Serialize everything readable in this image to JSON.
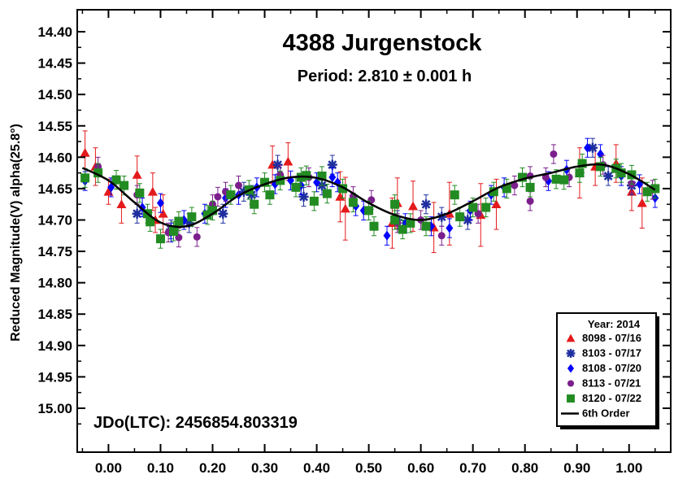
{
  "chart_data": {
    "type": "scatter",
    "title": "4388 Jurgenstock",
    "subtitle": "Period: 2.810 ± 0.001 h",
    "ylabel": "Reduced Magnitude(V) alpha(25.8°)",
    "xlabel": "",
    "annotation": "JDo(LTC): 2456854.803319",
    "xlim": [
      -0.06,
      1.08
    ],
    "ylim": [
      15.07,
      14.365
    ],
    "y_inverted": true,
    "grid": false,
    "x_ticks": [
      0.0,
      0.1,
      0.2,
      0.3,
      0.4,
      0.5,
      0.6,
      0.7,
      0.8,
      0.9,
      1.0
    ],
    "x_tick_labels": [
      "0.00",
      "0.10",
      "0.20",
      "0.30",
      "0.40",
      "0.50",
      "0.60",
      "0.70",
      "0.80",
      "0.90",
      "1.00"
    ],
    "y_ticks": [
      14.4,
      14.45,
      14.5,
      14.55,
      14.6,
      14.65,
      14.7,
      14.75,
      14.8,
      14.85,
      14.9,
      14.95,
      15.0
    ],
    "y_tick_labels": [
      "14.40",
      "14.45",
      "14.50",
      "14.55",
      "14.60",
      "14.65",
      "14.70",
      "14.75",
      "14.80",
      "14.85",
      "14.90",
      "14.95",
      "15.00"
    ],
    "legend": {
      "title": "Year: 2014",
      "placement": "bottom-right",
      "entries": [
        "8098 - 07/16",
        "8103 - 07/17",
        "8108 - 07/20",
        "8113 - 07/21",
        "8120 - 07/22",
        "6th Order"
      ]
    },
    "series": [
      {
        "name": "8098 - 07/16",
        "marker": "triangle",
        "color": "#e41a1c",
        "points": [
          [
            -0.045,
            14.593,
            0.035
          ],
          [
            -0.025,
            14.615,
            0.03
          ],
          [
            0.0,
            14.655,
            0.02
          ],
          [
            0.025,
            14.675,
            0.03
          ],
          [
            0.055,
            14.628,
            0.03
          ],
          [
            0.085,
            14.655,
            0.03
          ],
          [
            0.09,
            14.7,
            0.02
          ],
          [
            0.315,
            14.612,
            0.03
          ],
          [
            0.345,
            14.607,
            0.03
          ],
          [
            0.445,
            14.663,
            0.04
          ],
          [
            0.455,
            14.682,
            0.05
          ],
          [
            0.555,
            14.673,
            0.04
          ],
          [
            0.585,
            14.678,
            0.04
          ],
          [
            0.625,
            14.712,
            0.04
          ],
          [
            0.655,
            14.69,
            0.05
          ],
          [
            0.715,
            14.692,
            0.05
          ],
          [
            0.745,
            14.675,
            0.04
          ],
          [
            0.905,
            14.625,
            0.04
          ],
          [
            0.935,
            14.615,
            0.03
          ],
          [
            0.975,
            14.61,
            0.03
          ],
          [
            1.005,
            14.655,
            0.03
          ],
          [
            1.025,
            14.673,
            0.04
          ],
          [
            0.105,
            14.69,
            0.03
          ],
          [
            0.545,
            14.705,
            0.04
          ]
        ]
      },
      {
        "name": "8103 - 07/17",
        "marker": "asterisk",
        "color": "#1f2f9f",
        "points": [
          [
            0.055,
            14.69,
            0.015
          ],
          [
            0.12,
            14.715,
            0.015
          ],
          [
            0.155,
            14.705,
            0.015
          ],
          [
            0.2,
            14.685,
            0.015
          ],
          [
            0.22,
            14.69,
            0.015
          ],
          [
            0.26,
            14.655,
            0.015
          ],
          [
            0.275,
            14.66,
            0.015
          ],
          [
            0.325,
            14.612,
            0.015
          ],
          [
            0.375,
            14.663,
            0.015
          ],
          [
            0.41,
            14.645,
            0.015
          ],
          [
            0.43,
            14.612,
            0.015
          ],
          [
            0.555,
            14.7,
            0.015
          ],
          [
            0.61,
            14.675,
            0.015
          ],
          [
            0.64,
            14.695,
            0.015
          ],
          [
            0.69,
            14.7,
            0.015
          ],
          [
            0.93,
            14.585,
            0.015
          ],
          [
            0.96,
            14.63,
            0.015
          ],
          [
            1.005,
            14.645,
            0.015
          ]
        ]
      },
      {
        "name": "8108 - 07/20",
        "marker": "diamond",
        "color": "#0000ff",
        "points": [
          [
            -0.045,
            14.638,
            0.015
          ],
          [
            0.1,
            14.673,
            0.015
          ],
          [
            0.12,
            14.72,
            0.015
          ],
          [
            0.145,
            14.7,
            0.015
          ],
          [
            0.185,
            14.69,
            0.015
          ],
          [
            0.225,
            14.665,
            0.015
          ],
          [
            0.25,
            14.66,
            0.015
          ],
          [
            0.285,
            14.648,
            0.015
          ],
          [
            0.32,
            14.643,
            0.015
          ],
          [
            0.35,
            14.637,
            0.015
          ],
          [
            0.37,
            14.645,
            0.015
          ],
          [
            0.4,
            14.64,
            0.015
          ],
          [
            0.43,
            14.632,
            0.015
          ],
          [
            0.44,
            14.64,
            0.015
          ],
          [
            0.475,
            14.678,
            0.015
          ],
          [
            0.49,
            14.685,
            0.015
          ],
          [
            0.535,
            14.725,
            0.015
          ],
          [
            0.57,
            14.705,
            0.015
          ],
          [
            0.62,
            14.71,
            0.015
          ],
          [
            0.655,
            14.713,
            0.015
          ],
          [
            0.695,
            14.685,
            0.015
          ],
          [
            0.735,
            14.66,
            0.015
          ],
          [
            0.76,
            14.648,
            0.015
          ],
          [
            0.845,
            14.638,
            0.015
          ],
          [
            0.88,
            14.62,
            0.015
          ],
          [
            0.92,
            14.585,
            0.015
          ],
          [
            0.945,
            14.595,
            0.015
          ],
          [
            0.985,
            14.63,
            0.015
          ],
          [
            1.02,
            14.643,
            0.015
          ],
          [
            1.05,
            14.665,
            0.015
          ],
          [
            0.005,
            14.648,
            0.015
          ],
          [
            0.065,
            14.68,
            0.015
          ]
        ]
      },
      {
        "name": "8113 - 07/21",
        "marker": "circle",
        "color": "#7b1f8c",
        "points": [
          [
            -0.02,
            14.615,
            0.015
          ],
          [
            0.055,
            14.66,
            0.015
          ],
          [
            0.115,
            14.72,
            0.015
          ],
          [
            0.135,
            14.728,
            0.015
          ],
          [
            0.17,
            14.727,
            0.015
          ],
          [
            0.2,
            14.675,
            0.015
          ],
          [
            0.21,
            14.663,
            0.015
          ],
          [
            0.225,
            14.655,
            0.015
          ],
          [
            0.25,
            14.645,
            0.015
          ],
          [
            0.33,
            14.628,
            0.015
          ],
          [
            0.385,
            14.632,
            0.015
          ],
          [
            0.47,
            14.662,
            0.015
          ],
          [
            0.505,
            14.668,
            0.015
          ],
          [
            0.555,
            14.705,
            0.015
          ],
          [
            0.6,
            14.7,
            0.015
          ],
          [
            0.64,
            14.725,
            0.015
          ],
          [
            0.71,
            14.69,
            0.015
          ],
          [
            0.78,
            14.645,
            0.015
          ],
          [
            0.81,
            14.63,
            0.015
          ],
          [
            0.84,
            14.632,
            0.015
          ],
          [
            0.855,
            14.595,
            0.015
          ],
          [
            0.885,
            14.632,
            0.015
          ],
          [
            0.95,
            14.612,
            0.015
          ],
          [
            1.005,
            14.642,
            0.015
          ],
          [
            1.045,
            14.652,
            0.015
          ],
          [
            0.81,
            14.67,
            0.015
          ]
        ]
      },
      {
        "name": "8120 - 07/22",
        "marker": "square",
        "color": "#228b22",
        "points": [
          [
            -0.045,
            14.633,
            0.015
          ],
          [
            -0.02,
            14.625,
            0.015
          ],
          [
            0.015,
            14.636,
            0.015
          ],
          [
            0.03,
            14.645,
            0.015
          ],
          [
            0.06,
            14.657,
            0.015
          ],
          [
            0.075,
            14.69,
            0.015
          ],
          [
            0.08,
            14.703,
            0.015
          ],
          [
            0.1,
            14.73,
            0.015
          ],
          [
            0.125,
            14.718,
            0.015
          ],
          [
            0.135,
            14.702,
            0.015
          ],
          [
            0.16,
            14.695,
            0.015
          ],
          [
            0.19,
            14.692,
            0.015
          ],
          [
            0.2,
            14.685,
            0.015
          ],
          [
            0.235,
            14.66,
            0.015
          ],
          [
            0.27,
            14.652,
            0.015
          ],
          [
            0.28,
            14.675,
            0.015
          ],
          [
            0.3,
            14.64,
            0.015
          ],
          [
            0.31,
            14.66,
            0.015
          ],
          [
            0.33,
            14.637,
            0.015
          ],
          [
            0.36,
            14.648,
            0.015
          ],
          [
            0.37,
            14.632,
            0.015
          ],
          [
            0.38,
            14.629,
            0.015
          ],
          [
            0.395,
            14.67,
            0.015
          ],
          [
            0.41,
            14.63,
            0.015
          ],
          [
            0.42,
            14.658,
            0.015
          ],
          [
            0.45,
            14.65,
            0.015
          ],
          [
            0.47,
            14.672,
            0.015
          ],
          [
            0.5,
            14.685,
            0.015
          ],
          [
            0.51,
            14.71,
            0.015
          ],
          [
            0.55,
            14.675,
            0.015
          ],
          [
            0.565,
            14.715,
            0.015
          ],
          [
            0.58,
            14.705,
            0.015
          ],
          [
            0.61,
            14.71,
            0.015
          ],
          [
            0.665,
            14.66,
            0.015
          ],
          [
            0.675,
            14.695,
            0.015
          ],
          [
            0.7,
            14.68,
            0.015
          ],
          [
            0.725,
            14.68,
            0.015
          ],
          [
            0.74,
            14.655,
            0.015
          ],
          [
            0.765,
            14.65,
            0.015
          ],
          [
            0.795,
            14.632,
            0.015
          ],
          [
            0.81,
            14.648,
            0.015
          ],
          [
            0.86,
            14.635,
            0.015
          ],
          [
            0.875,
            14.636,
            0.015
          ],
          [
            0.905,
            14.625,
            0.015
          ],
          [
            0.91,
            14.61,
            0.015
          ],
          [
            0.945,
            14.615,
            0.015
          ],
          [
            0.975,
            14.618,
            0.015
          ],
          [
            0.985,
            14.625,
            0.015
          ],
          [
            1.005,
            14.628,
            0.015
          ],
          [
            1.035,
            14.655,
            0.015
          ],
          [
            1.05,
            14.65,
            0.015
          ],
          [
            0.55,
            14.7,
            0.015
          ]
        ]
      }
    ],
    "fit": {
      "name": "6th Order",
      "color": "#000000",
      "x": [
        -0.05,
        0.0,
        0.05,
        0.1,
        0.15,
        0.2,
        0.25,
        0.3,
        0.35,
        0.4,
        0.45,
        0.5,
        0.55,
        0.6,
        0.65,
        0.7,
        0.75,
        0.8,
        0.85,
        0.9,
        0.95,
        1.0,
        1.05
      ],
      "y": [
        14.617,
        14.637,
        14.672,
        14.704,
        14.71,
        14.69,
        14.661,
        14.643,
        14.632,
        14.633,
        14.648,
        14.673,
        14.692,
        14.7,
        14.69,
        14.67,
        14.648,
        14.634,
        14.625,
        14.615,
        14.612,
        14.627,
        14.652
      ]
    }
  }
}
